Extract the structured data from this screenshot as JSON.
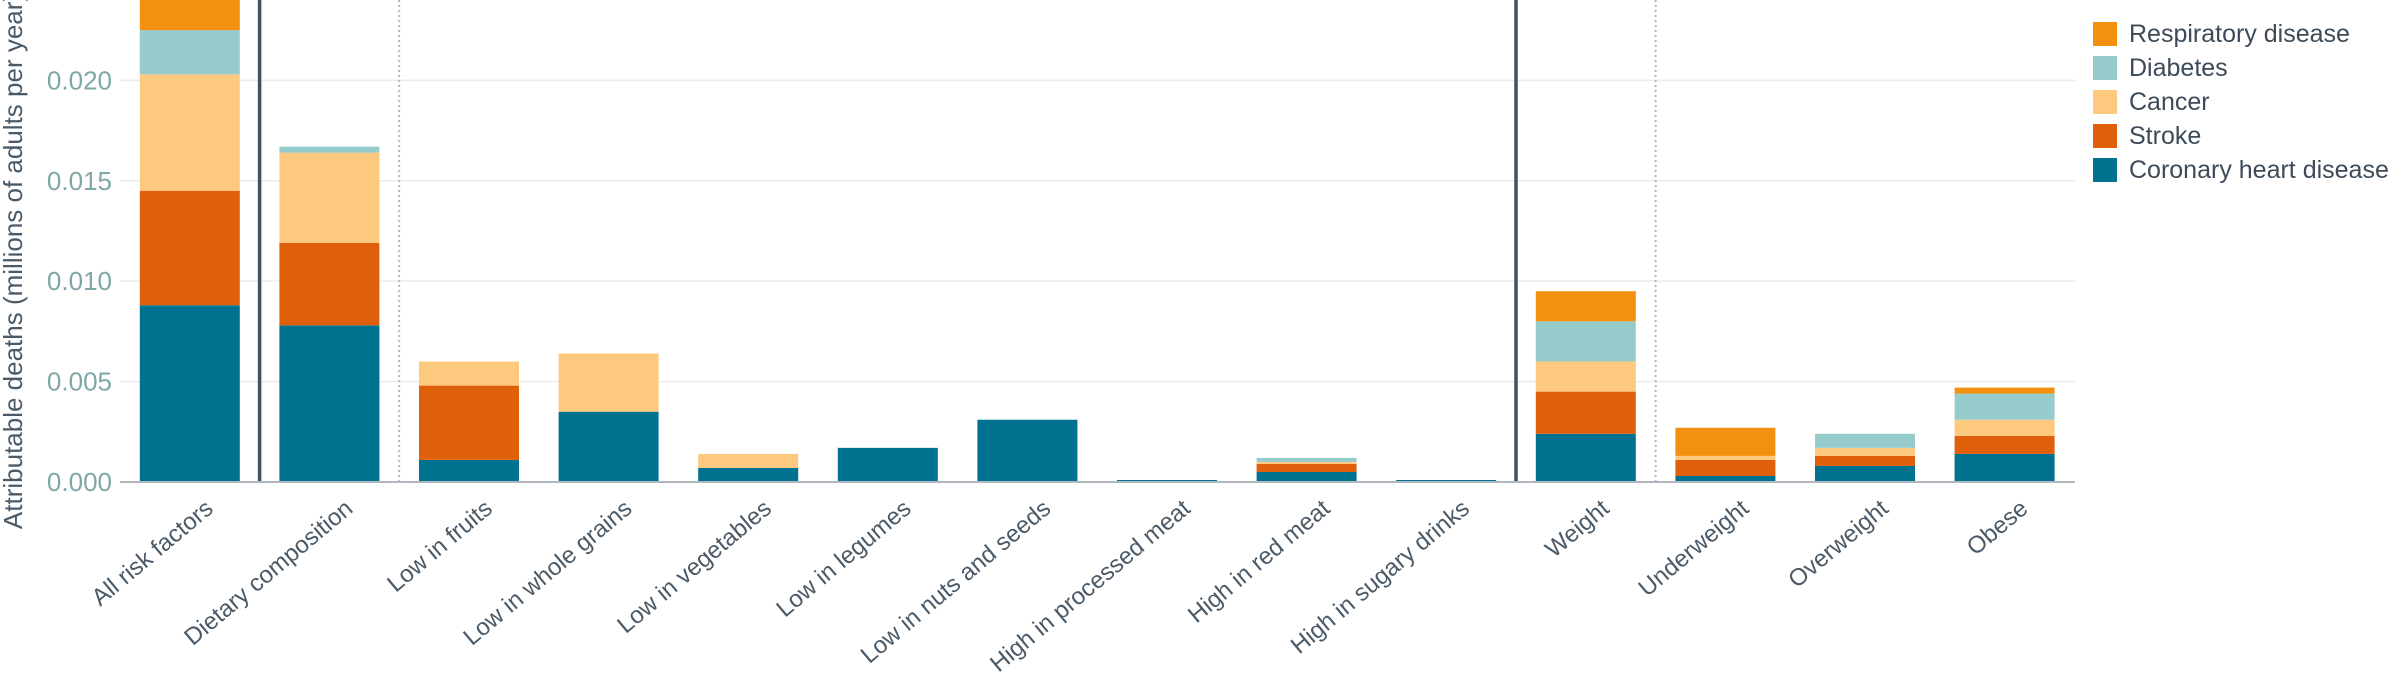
{
  "chart_data": {
    "type": "bar",
    "stacked": true,
    "ylabel": "Attributable deaths (millions of adults per year)",
    "ylim": [
      0,
      0.024
    ],
    "yticks": [
      "0.000",
      "0.005",
      "0.010",
      "0.015",
      "0.020"
    ],
    "ytick_values": [
      0,
      0.005,
      0.01,
      0.015,
      0.02
    ],
    "grid": true,
    "legend_position": "top-right",
    "categories": [
      "All risk factors",
      "Dietary composition",
      "Low in fruits",
      "Low in whole grains",
      "Low in vegetables",
      "Low in legumes",
      "Low in nuts and seeds",
      "High in processed meat",
      "High in red meat",
      "High in sugary drinks",
      "Weight",
      "Underweight",
      "Overweight",
      "Obese"
    ],
    "series": [
      {
        "name": "Coronary heart disease",
        "color": "#00728f",
        "values": [
          0.0088,
          0.0078,
          0.0011,
          0.0035,
          0.0007,
          0.0017,
          0.0031,
          0.0001,
          0.0005,
          0.0001,
          0.0024,
          0.0003,
          0.0008,
          0.0014
        ]
      },
      {
        "name": "Stroke",
        "color": "#e05f0a",
        "values": [
          0.0057,
          0.0041,
          0.0037,
          0.0,
          0.0,
          0.0,
          0.0,
          0.0,
          0.0004,
          0.0,
          0.0021,
          0.0008,
          0.0005,
          0.0009
        ]
      },
      {
        "name": "Cancer",
        "color": "#fcc97e",
        "values": [
          0.0058,
          0.0045,
          0.0012,
          0.0029,
          0.0007,
          0.0,
          0.0,
          0.0,
          0.0001,
          0.0,
          0.0015,
          0.0002,
          0.0004,
          0.0008
        ]
      },
      {
        "name": "Diabetes",
        "color": "#95cbca",
        "values": [
          0.0022,
          0.0003,
          0.0,
          0.0,
          0.0,
          0.0,
          0.0,
          0.0,
          0.0002,
          0.0,
          0.002,
          0.0,
          0.0007,
          0.0013
        ]
      },
      {
        "name": "Respiratory disease",
        "color": "#f3900f",
        "values": [
          0.0016,
          0.0,
          0.0,
          0.0,
          0.0,
          0.0,
          0.0,
          0.0,
          0.0,
          0.0,
          0.0015,
          0.0014,
          0.0,
          0.0003
        ]
      }
    ],
    "legend_order": [
      "Respiratory disease",
      "Diabetes",
      "Cancer",
      "Stroke",
      "Coronary heart disease"
    ],
    "separators": [
      {
        "after_index": 0,
        "style": "solid"
      },
      {
        "after_index": 1,
        "style": "dotted"
      },
      {
        "after_index": 9,
        "style": "solid"
      },
      {
        "after_index": 10,
        "style": "dotted"
      }
    ],
    "colors": {
      "grid": "#ececec",
      "axis": "#b0b7bf",
      "separator": "#3f5262",
      "tick_text": "#7fa7a7",
      "label_text": "#4a5a68"
    }
  }
}
